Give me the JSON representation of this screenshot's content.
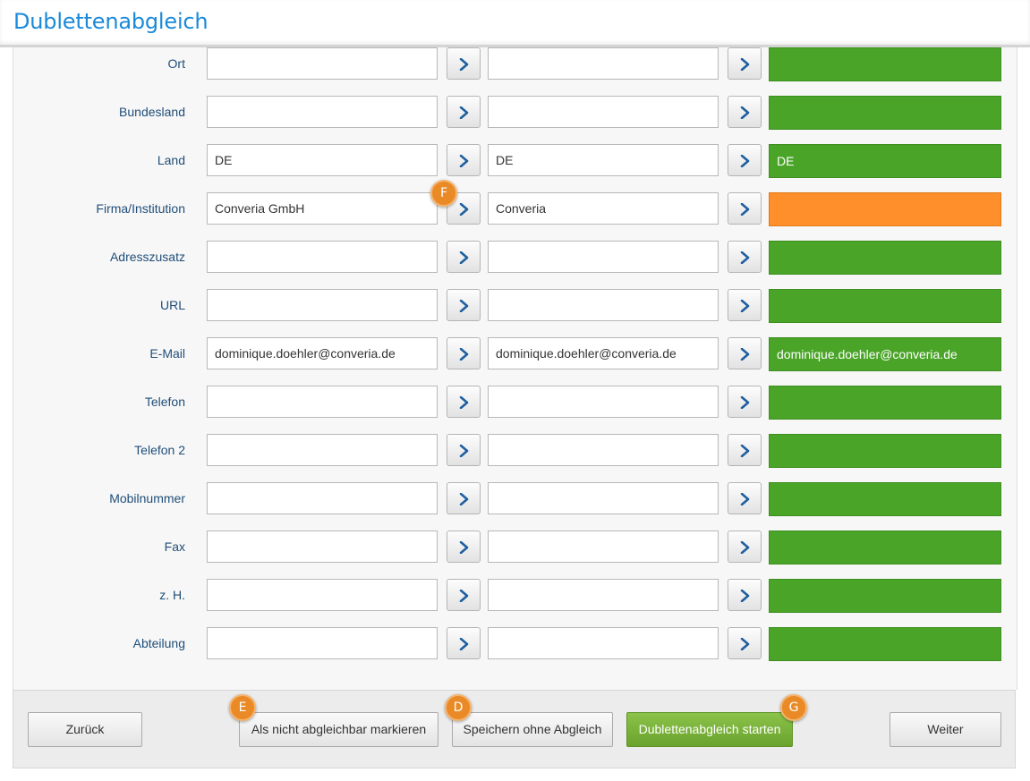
{
  "header": {
    "title": "Dublettenabgleich"
  },
  "rows": [
    {
      "label": "Ort",
      "left": "",
      "right": "",
      "result": "",
      "status": "ok"
    },
    {
      "label": "Bundesland",
      "left": "",
      "right": "",
      "result": "",
      "status": "ok"
    },
    {
      "label": "Land",
      "left": "DE",
      "right": "DE",
      "result": "DE",
      "status": "ok"
    },
    {
      "label": "Firma/Institution",
      "left": "Converia GmbH",
      "right": "Converia",
      "result": "",
      "status": "conflict"
    },
    {
      "label": "Adresszusatz",
      "left": "",
      "right": "",
      "result": "",
      "status": "ok"
    },
    {
      "label": "URL",
      "left": "",
      "right": "",
      "result": "",
      "status": "ok"
    },
    {
      "label": "E-Mail",
      "left": "dominique.doehler@converia.de",
      "right": "dominique.doehler@converia.de",
      "result": "dominique.doehler@converia.de",
      "status": "ok"
    },
    {
      "label": "Telefon",
      "left": "",
      "right": "",
      "result": "",
      "status": "ok"
    },
    {
      "label": "Telefon 2",
      "left": "",
      "right": "",
      "result": "",
      "status": "ok"
    },
    {
      "label": "Mobilnummer",
      "left": "",
      "right": "",
      "result": "",
      "status": "ok"
    },
    {
      "label": "Fax",
      "left": "",
      "right": "",
      "result": "",
      "status": "ok"
    },
    {
      "label": "z. H.",
      "left": "",
      "right": "",
      "result": "",
      "status": "ok"
    },
    {
      "label": "Abteilung",
      "left": "",
      "right": "",
      "result": "",
      "status": "ok"
    }
  ],
  "footer": {
    "back_label": "Zurück",
    "mark_label": "Als nicht abgleichbar markieren",
    "save_label": "Speichern ohne Abgleich",
    "start_label": "Dublettenabgleich starten",
    "next_label": "Weiter"
  },
  "badges": {
    "f": "F",
    "e": "E",
    "d": "D",
    "g": "G"
  },
  "colors": {
    "accent": "#1a8ad8",
    "match": "#4aa428",
    "conflict": "#ff8f2a",
    "primary_button": "#7ab43b",
    "badge": "#ea8a26",
    "arrow": "#1f5fa0"
  },
  "icons": {
    "transfer_arrow": "chevron-right-icon"
  }
}
